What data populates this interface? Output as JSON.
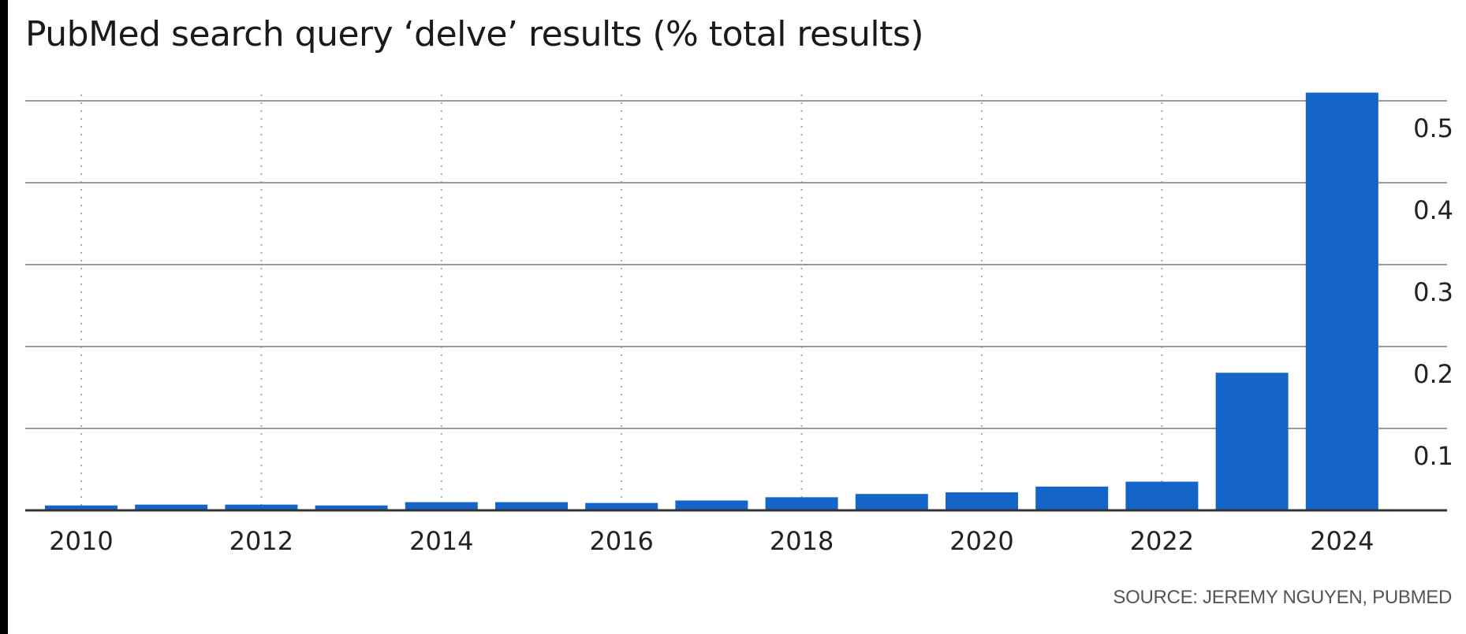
{
  "chart_data": {
    "type": "bar",
    "title": "PubMed search query ‘delve’ results (% total results)",
    "source": "SOURCE: JEREMY NGUYEN, PUBMED",
    "categories": [
      "2010",
      "2011",
      "2012",
      "2013",
      "2014",
      "2015",
      "2016",
      "2017",
      "2018",
      "2019",
      "2020",
      "2021",
      "2022",
      "2023",
      "2024"
    ],
    "values": [
      0.006,
      0.007,
      0.007,
      0.006,
      0.01,
      0.01,
      0.009,
      0.012,
      0.016,
      0.02,
      0.022,
      0.029,
      0.035,
      0.168,
      0.51
    ],
    "x_tick_labels": [
      "2010",
      "2012",
      "2014",
      "2016",
      "2018",
      "2020",
      "2022",
      "2024"
    ],
    "y_ticks": [
      0.1,
      0.2,
      0.3,
      0.4,
      0.5
    ],
    "y_tick_labels": [
      "0.1",
      "0.2",
      "0.3",
      "0.4",
      "0.5"
    ],
    "ylim": [
      0,
      0.5
    ],
    "y_axis_side": "right",
    "grid": true,
    "colors": {
      "bar": "#1565C8",
      "gridline": "#9a9a9a",
      "baseline": "#333333",
      "vertical_grid": "#aaaaaa"
    }
  }
}
